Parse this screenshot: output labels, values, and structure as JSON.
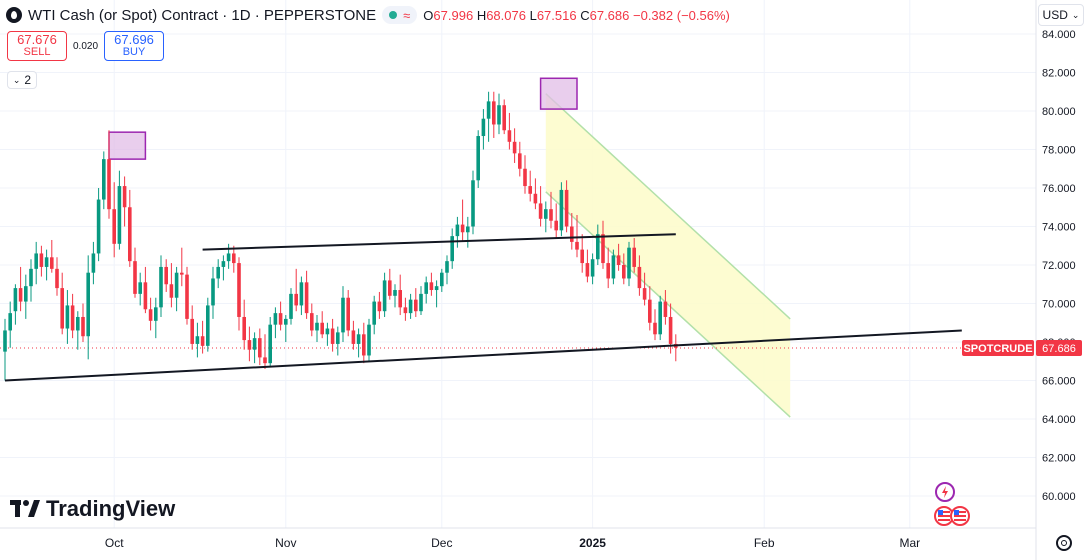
{
  "header": {
    "title": "WTI Cash (or Spot) Contract · 1D · PEPPERSTONE",
    "ohlc": {
      "o_label": "O",
      "o_value": "67.996",
      "h_label": "H",
      "h_value": "68.076",
      "l_label": "L",
      "l_value": "67.516",
      "c_label": "C",
      "c_value": "67.686",
      "change": "−0.382 (−0.56%)"
    },
    "market_status_icon": "green-dot-icon",
    "wave_icon": "≈"
  },
  "trade": {
    "sell_price": "67.676",
    "sell_label": "SELL",
    "spread": "0.020",
    "buy_price": "67.696",
    "buy_label": "BUY"
  },
  "indicator_count": "2",
  "currency": "USD",
  "logo": "TradingView",
  "colors": {
    "up": "#089981",
    "down": "#f23645",
    "channel_fill": "#fdfbc9",
    "channel_stroke": "#b2e0a9",
    "highlight": "#9c27b0",
    "label_bg": "#f23645"
  },
  "chart_data": {
    "type": "candlestick",
    "title": "WTI Cash (or Spot) Contract · 1D · PEPPERSTONE",
    "ylim": [
      59,
      85
    ],
    "y_ticks": [
      60,
      62,
      64,
      66,
      68,
      70,
      72,
      74,
      76,
      78,
      80,
      82,
      84
    ],
    "y_tick_labels": [
      "60.000",
      "62.000",
      "64.000",
      "66.000",
      "68.000",
      "70.000",
      "72.000",
      "74.000",
      "76.000",
      "78.000",
      "80.000",
      "82.000",
      "84.000"
    ],
    "x_labels": [
      {
        "label": "Oct",
        "bar": 21
      },
      {
        "label": "Nov",
        "bar": 54
      },
      {
        "label": "Dec",
        "bar": 84
      },
      {
        "label": "2025",
        "bar": 113
      },
      {
        "label": "Feb",
        "bar": 146
      },
      {
        "label": "Mar",
        "bar": 174
      }
    ],
    "last_price": 67.686,
    "last_price_label": "SPOTCRUDE",
    "last_price_value": "67.686",
    "candles": [
      [
        67.5,
        69.2,
        66.0,
        68.6
      ],
      [
        68.6,
        70.1,
        67.7,
        69.5
      ],
      [
        69.6,
        71.0,
        68.9,
        70.8
      ],
      [
        70.8,
        71.9,
        69.6,
        70.1
      ],
      [
        70.1,
        71.5,
        69.2,
        70.9
      ],
      [
        70.9,
        72.3,
        70.1,
        71.8
      ],
      [
        71.8,
        73.2,
        71.0,
        72.6
      ],
      [
        72.6,
        73.0,
        71.4,
        71.9
      ],
      [
        71.9,
        72.8,
        71.2,
        72.4
      ],
      [
        72.4,
        73.3,
        71.6,
        71.8
      ],
      [
        71.8,
        72.4,
        70.4,
        70.8
      ],
      [
        70.8,
        71.6,
        68.4,
        68.7
      ],
      [
        68.7,
        70.7,
        67.9,
        69.9
      ],
      [
        69.9,
        70.5,
        68.2,
        68.6
      ],
      [
        68.6,
        69.6,
        67.6,
        69.3
      ],
      [
        69.3,
        70.0,
        68.0,
        68.3
      ],
      [
        68.3,
        72.5,
        67.1,
        71.6
      ],
      [
        71.6,
        73.2,
        71.0,
        72.6
      ],
      [
        72.6,
        76.0,
        72.2,
        75.4
      ],
      [
        75.4,
        77.9,
        74.9,
        77.5
      ],
      [
        77.5,
        79.0,
        74.4,
        74.9
      ],
      [
        74.9,
        76.3,
        72.4,
        73.1
      ],
      [
        73.1,
        76.9,
        72.8,
        76.1
      ],
      [
        76.1,
        76.6,
        74.0,
        75.0
      ],
      [
        75.0,
        75.9,
        71.9,
        72.2
      ],
      [
        72.2,
        72.9,
        70.3,
        70.5
      ],
      [
        70.5,
        71.6,
        69.9,
        71.1
      ],
      [
        71.1,
        71.9,
        69.5,
        69.7
      ],
      [
        69.7,
        70.3,
        68.6,
        69.1
      ],
      [
        69.1,
        70.3,
        68.2,
        69.8
      ],
      [
        69.8,
        72.5,
        69.3,
        71.9
      ],
      [
        71.9,
        72.3,
        70.6,
        71.0
      ],
      [
        71.0,
        72.1,
        69.8,
        70.3
      ],
      [
        70.3,
        71.9,
        69.6,
        71.6
      ],
      [
        71.6,
        72.9,
        70.9,
        71.5
      ],
      [
        71.5,
        71.9,
        68.9,
        69.2
      ],
      [
        69.2,
        69.9,
        67.6,
        67.9
      ],
      [
        67.9,
        69.0,
        67.2,
        68.3
      ],
      [
        68.3,
        69.1,
        67.4,
        67.8
      ],
      [
        67.8,
        70.3,
        67.5,
        69.9
      ],
      [
        69.9,
        71.9,
        69.2,
        71.3
      ],
      [
        71.3,
        72.3,
        70.8,
        71.9
      ],
      [
        71.9,
        72.5,
        71.2,
        72.2
      ],
      [
        72.2,
        73.1,
        71.8,
        72.6
      ],
      [
        72.6,
        73.0,
        71.6,
        72.1
      ],
      [
        72.1,
        72.4,
        68.6,
        69.3
      ],
      [
        69.3,
        70.2,
        67.6,
        68.1
      ],
      [
        68.1,
        68.8,
        67.0,
        67.6
      ],
      [
        67.6,
        68.5,
        66.9,
        68.2
      ],
      [
        68.2,
        68.7,
        66.8,
        67.2
      ],
      [
        67.2,
        68.4,
        66.6,
        66.9
      ],
      [
        66.9,
        69.3,
        66.7,
        68.9
      ],
      [
        68.9,
        69.8,
        68.2,
        69.5
      ],
      [
        69.5,
        70.1,
        68.6,
        68.9
      ],
      [
        68.9,
        69.4,
        68.0,
        69.2
      ],
      [
        69.2,
        70.8,
        68.9,
        70.5
      ],
      [
        70.5,
        71.8,
        69.6,
        69.9
      ],
      [
        69.9,
        71.4,
        69.4,
        71.1
      ],
      [
        71.1,
        71.7,
        69.2,
        69.5
      ],
      [
        69.5,
        70.0,
        68.3,
        68.6
      ],
      [
        68.6,
        69.4,
        68.0,
        69.0
      ],
      [
        69.0,
        69.6,
        68.2,
        68.4
      ],
      [
        68.4,
        69.0,
        67.8,
        68.7
      ],
      [
        68.7,
        69.2,
        67.5,
        67.9
      ],
      [
        67.9,
        68.8,
        67.3,
        68.5
      ],
      [
        68.5,
        70.9,
        68.0,
        70.3
      ],
      [
        70.3,
        70.7,
        68.3,
        68.6
      ],
      [
        68.6,
        69.1,
        67.6,
        67.9
      ],
      [
        67.9,
        68.7,
        67.2,
        68.4
      ],
      [
        68.4,
        69.0,
        66.9,
        67.3
      ],
      [
        67.3,
        69.2,
        67.0,
        68.9
      ],
      [
        68.9,
        70.4,
        68.4,
        70.1
      ],
      [
        70.1,
        70.6,
        69.2,
        69.6
      ],
      [
        69.6,
        71.6,
        69.3,
        71.2
      ],
      [
        71.2,
        71.8,
        70.2,
        70.4
      ],
      [
        70.4,
        71.0,
        69.8,
        70.7
      ],
      [
        70.7,
        71.5,
        69.4,
        69.8
      ],
      [
        69.8,
        70.3,
        69.1,
        69.5
      ],
      [
        69.5,
        70.5,
        69.2,
        70.2
      ],
      [
        70.2,
        70.8,
        69.3,
        69.6
      ],
      [
        69.6,
        70.9,
        69.4,
        70.5
      ],
      [
        70.5,
        71.4,
        70.0,
        71.1
      ],
      [
        71.1,
        71.6,
        70.4,
        70.7
      ],
      [
        70.7,
        71.2,
        69.8,
        70.9
      ],
      [
        70.9,
        71.8,
        70.6,
        71.6
      ],
      [
        71.6,
        72.5,
        71.0,
        72.2
      ],
      [
        72.2,
        73.9,
        71.8,
        73.5
      ],
      [
        73.5,
        74.5,
        72.9,
        74.1
      ],
      [
        74.1,
        75.4,
        73.2,
        73.7
      ],
      [
        73.7,
        74.5,
        72.9,
        74.0
      ],
      [
        74.0,
        76.9,
        73.6,
        76.4
      ],
      [
        76.4,
        79.0,
        76.0,
        78.7
      ],
      [
        78.7,
        80.1,
        78.0,
        79.6
      ],
      [
        79.6,
        81.0,
        78.4,
        80.5
      ],
      [
        80.5,
        81.0,
        78.6,
        79.3
      ],
      [
        79.3,
        80.9,
        78.8,
        80.3
      ],
      [
        80.3,
        80.6,
        78.8,
        79.0
      ],
      [
        79.0,
        79.9,
        78.0,
        78.4
      ],
      [
        78.4,
        79.1,
        77.3,
        77.8
      ],
      [
        77.8,
        78.4,
        76.6,
        77.0
      ],
      [
        77.0,
        77.7,
        75.7,
        76.1
      ],
      [
        76.1,
        76.9,
        75.3,
        75.7
      ],
      [
        75.7,
        76.5,
        74.9,
        75.2
      ],
      [
        75.2,
        76.1,
        74.0,
        74.4
      ],
      [
        74.4,
        75.3,
        73.7,
        74.9
      ],
      [
        74.9,
        75.8,
        73.9,
        74.3
      ],
      [
        74.3,
        75.2,
        73.4,
        73.8
      ],
      [
        73.8,
        76.3,
        73.5,
        75.9
      ],
      [
        75.9,
        76.4,
        73.7,
        74.0
      ],
      [
        74.0,
        74.7,
        72.8,
        73.2
      ],
      [
        73.2,
        74.6,
        72.4,
        72.8
      ],
      [
        72.8,
        73.6,
        71.6,
        72.1
      ],
      [
        72.1,
        72.8,
        71.1,
        71.4
      ],
      [
        71.4,
        72.6,
        71.0,
        72.3
      ],
      [
        72.3,
        74.1,
        72.0,
        73.6
      ],
      [
        73.6,
        74.3,
        71.8,
        72.1
      ],
      [
        72.1,
        72.9,
        70.8,
        71.3
      ],
      [
        71.3,
        72.8,
        71.0,
        72.5
      ],
      [
        72.5,
        73.1,
        71.7,
        72.0
      ],
      [
        72.0,
        72.6,
        71.0,
        71.3
      ],
      [
        71.3,
        73.2,
        70.9,
        72.9
      ],
      [
        72.9,
        73.4,
        71.6,
        71.9
      ],
      [
        71.9,
        72.5,
        70.4,
        70.8
      ],
      [
        70.8,
        71.6,
        69.9,
        70.2
      ],
      [
        70.2,
        70.9,
        68.6,
        69.0
      ],
      [
        69.0,
        69.7,
        68.1,
        68.4
      ],
      [
        68.4,
        70.4,
        68.1,
        70.1
      ],
      [
        70.1,
        70.7,
        68.9,
        69.3
      ],
      [
        69.3,
        70.0,
        67.4,
        67.9
      ],
      [
        67.9,
        68.4,
        67.0,
        67.7
      ]
    ]
  },
  "drawings": {
    "lower_trendline": [
      [
        0,
        66.0
      ],
      [
        184,
        68.6
      ]
    ],
    "upper_trendline": [
      [
        38,
        72.8
      ],
      [
        129,
        73.6
      ]
    ],
    "channel_upper": [
      [
        104,
        80.9
      ],
      [
        151,
        69.2
      ]
    ],
    "channel_lower": [
      [
        104,
        75.8
      ],
      [
        151,
        64.1
      ]
    ],
    "highlight_boxes": [
      {
        "bar_from": 20,
        "bar_to": 27,
        "y_from": 77.5,
        "y_to": 78.9
      },
      {
        "bar_from": 103,
        "bar_to": 110,
        "y_from": 80.1,
        "y_to": 81.7
      }
    ]
  }
}
